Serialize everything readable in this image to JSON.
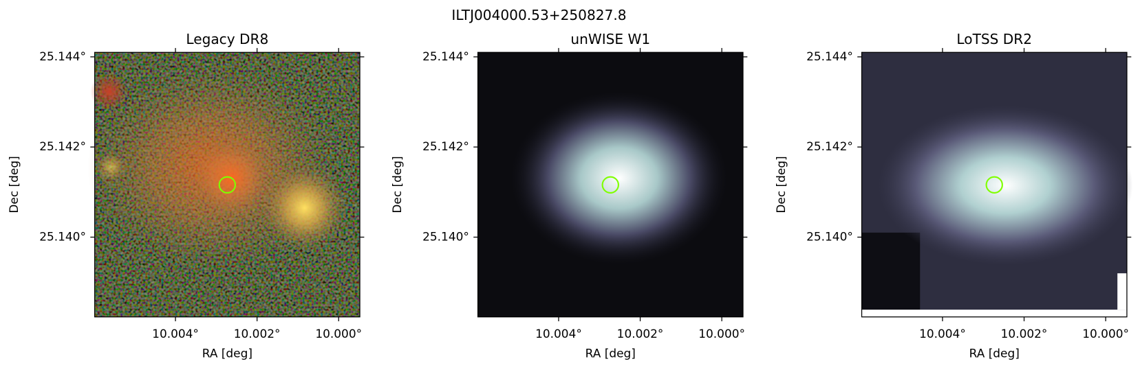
{
  "title": "ILTJ004000.53+250827.8",
  "chart_data": [
    {
      "type": "image",
      "title": "Legacy DR8",
      "xlabel": "RA [deg]",
      "ylabel": "Dec [deg]",
      "xlim": [
        10.00598,
        9.99948
      ],
      "ylim": [
        25.13823,
        25.1441
      ],
      "xticks": [
        {
          "value": 10.004,
          "label": "10.004°"
        },
        {
          "value": 10.002,
          "label": "10.002°"
        },
        {
          "value": 10.0,
          "label": "10.000°"
        }
      ],
      "yticks": [
        {
          "value": 25.14,
          "label": "25.140°"
        },
        {
          "value": 25.142,
          "label": "25.142°"
        },
        {
          "value": 25.144,
          "label": "25.144°"
        }
      ],
      "marker": {
        "x": 10.00273,
        "y": 25.14116,
        "color": "#7fff00"
      }
    },
    {
      "type": "image",
      "title": "unWISE W1",
      "xlabel": "RA [deg]",
      "ylabel": "Dec [deg]",
      "xlim": [
        10.00598,
        9.99948
      ],
      "ylim": [
        25.13823,
        25.1441
      ],
      "xticks": [
        {
          "value": 10.004,
          "label": "10.004°"
        },
        {
          "value": 10.002,
          "label": "10.002°"
        },
        {
          "value": 10.0,
          "label": "10.000°"
        }
      ],
      "yticks": [
        {
          "value": 25.14,
          "label": "25.140°"
        },
        {
          "value": 25.142,
          "label": "25.142°"
        },
        {
          "value": 25.144,
          "label": "25.144°"
        }
      ],
      "marker": {
        "x": 10.00273,
        "y": 25.14116,
        "color": "#7fff00"
      }
    },
    {
      "type": "image",
      "title": "LoTSS DR2",
      "xlabel": "RA [deg]",
      "ylabel": "Dec [deg]",
      "xlim": [
        10.00598,
        9.99948
      ],
      "ylim": [
        25.13823,
        25.1441
      ],
      "xticks": [
        {
          "value": 10.004,
          "label": "10.004°"
        },
        {
          "value": 10.002,
          "label": "10.002°"
        },
        {
          "value": 10.0,
          "label": "10.000°"
        }
      ],
      "yticks": [
        {
          "value": 25.14,
          "label": "25.140°"
        },
        {
          "value": 25.142,
          "label": "25.142°"
        },
        {
          "value": 25.144,
          "label": "25.144°"
        }
      ],
      "marker": {
        "x": 10.00273,
        "y": 25.14116,
        "color": "#7fff00"
      }
    }
  ]
}
